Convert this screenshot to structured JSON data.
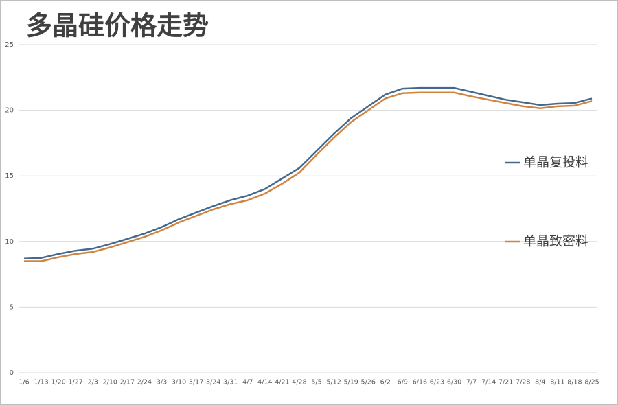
{
  "chart_data": {
    "type": "line",
    "title": "多晶硅价格走势",
    "categories": [
      "1/6",
      "1/13",
      "1/20",
      "1/27",
      "2/3",
      "2/10",
      "2/17",
      "2/24",
      "3/3",
      "3/10",
      "3/17",
      "3/24",
      "3/31",
      "4/7",
      "4/14",
      "4/21",
      "4/28",
      "5/5",
      "5/12",
      "5/19",
      "5/26",
      "6/2",
      "6/9",
      "6/16",
      "6/23",
      "6/30",
      "7/7",
      "7/14",
      "7/21",
      "7/28",
      "8/4",
      "8/11",
      "8/18",
      "8/25"
    ],
    "series": [
      {
        "name": "单晶复投料",
        "color": "#44698f",
        "values": [
          8.7,
          8.75,
          9.05,
          9.3,
          9.45,
          9.8,
          10.2,
          10.6,
          11.1,
          11.7,
          12.2,
          12.7,
          13.15,
          13.5,
          14.0,
          14.8,
          15.6,
          16.9,
          18.2,
          19.4,
          20.3,
          21.2,
          21.65,
          21.7,
          21.7,
          21.7,
          21.4,
          21.1,
          20.8,
          20.6,
          20.4,
          20.5,
          20.55,
          20.9
        ]
      },
      {
        "name": "单晶致密料",
        "color": "#d0843f",
        "values": [
          8.5,
          8.5,
          8.8,
          9.05,
          9.2,
          9.55,
          9.95,
          10.35,
          10.85,
          11.45,
          11.95,
          12.45,
          12.85,
          13.15,
          13.65,
          14.4,
          15.25,
          16.6,
          17.9,
          19.1,
          20.0,
          20.9,
          21.3,
          21.35,
          21.35,
          21.35,
          21.05,
          20.8,
          20.55,
          20.3,
          20.15,
          20.3,
          20.35,
          20.7
        ]
      }
    ],
    "ylim": [
      0,
      25
    ],
    "yticks": [
      0,
      5,
      10,
      15,
      20,
      25
    ],
    "grid": true,
    "legend": "right"
  }
}
